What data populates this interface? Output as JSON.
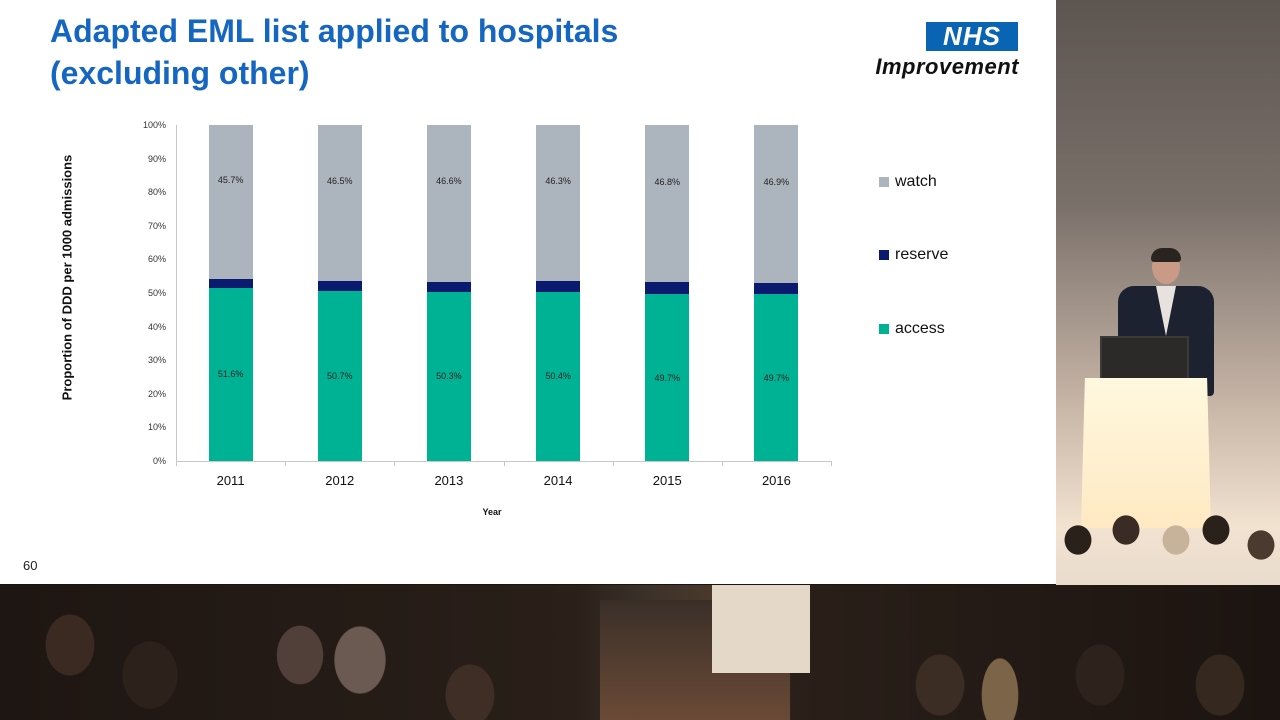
{
  "slide": {
    "title_line1": "Adapted EML list applied to hospitals",
    "title_line2": "(excluding other)",
    "logo": {
      "nhs": "NHS",
      "text": "Improvement",
      "color": "#0a64b4"
    },
    "slide_number": "60",
    "title_color": "#1466c0"
  },
  "chart_data": {
    "type": "bar",
    "stacked": true,
    "title": "Adapted EML list applied to hospitals (excluding other)",
    "xlabel": "Year",
    "ylabel": "Proportion of DDD per 1000 admissions",
    "ylim": [
      0,
      100
    ],
    "yticks": [
      "0%",
      "10%",
      "20%",
      "30%",
      "40%",
      "50%",
      "60%",
      "70%",
      "80%",
      "90%",
      "100%"
    ],
    "categories": [
      "2011",
      "2012",
      "2013",
      "2014",
      "2015",
      "2016"
    ],
    "series": [
      {
        "name": "access",
        "color": "#00b294",
        "values": [
          51.6,
          50.7,
          50.3,
          50.4,
          49.7,
          49.7
        ],
        "labels": [
          "51.6%",
          "50.7%",
          "50.3%",
          "50.4%",
          "49.7%",
          "49.7%"
        ]
      },
      {
        "name": "reserve",
        "color": "#0a1a6e",
        "values": [
          2.7,
          2.8,
          3.1,
          3.3,
          3.5,
          3.4
        ],
        "labels": []
      },
      {
        "name": "watch",
        "color": "#acb4bd",
        "values": [
          45.7,
          46.5,
          46.6,
          46.3,
          46.8,
          46.9
        ],
        "labels": [
          "45.7%",
          "46.5%",
          "46.6%",
          "46.3%",
          "46.8%",
          "46.9%"
        ]
      }
    ],
    "legend": {
      "position": "right",
      "items": [
        {
          "label": "watch",
          "color": "#acb4bd"
        },
        {
          "label": "reserve",
          "color": "#0a1a6e"
        },
        {
          "label": "access",
          "color": "#00b294"
        }
      ]
    },
    "grid": false
  }
}
